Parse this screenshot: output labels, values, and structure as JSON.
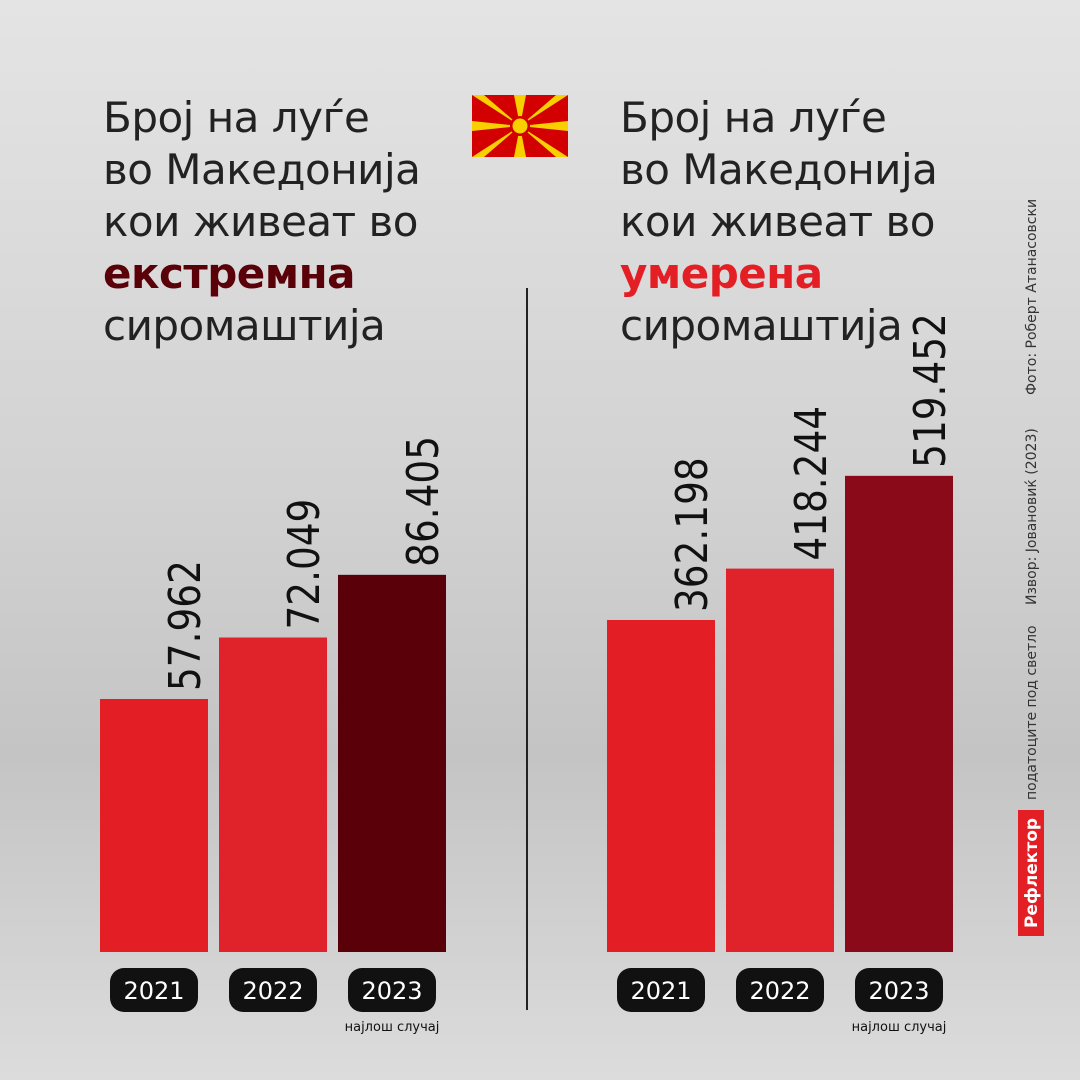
{
  "chart_data": [
    {
      "type": "bar",
      "title": {
        "before": "Број на луѓе во Македонија кои живеат во",
        "emphasis": "екстремна",
        "after": "сиромаштија"
      },
      "emphasis_color": "#5a0008",
      "categories": [
        "2021",
        "2022",
        "2023"
      ],
      "values": [
        57962,
        72049,
        86405
      ],
      "value_labels": [
        "57.962",
        "72.049",
        "86.405"
      ],
      "colors": [
        "#e31e24",
        "#e0222a",
        "#5a0008"
      ],
      "ylim": [
        0,
        126000
      ],
      "annotation": "најлош случај"
    },
    {
      "type": "bar",
      "title": {
        "before": "Број на луѓе во Македонија кои живеат во",
        "emphasis": "умерена",
        "after": "сиромаштија"
      },
      "emphasis_color": "#e31e24",
      "categories": [
        "2021",
        "2022",
        "2023"
      ],
      "values": [
        362198,
        418244,
        519452
      ],
      "value_labels": [
        "362.198",
        "418.244",
        "519.452"
      ],
      "colors": [
        "#e31e24",
        "#e0222a",
        "#8b0a1a"
      ],
      "ylim": [
        0,
        600000
      ],
      "annotation": "најлош случај"
    }
  ],
  "brand": "Рефлектор",
  "tagline": "податоците под светло",
  "source": "Извор: Јовановиќ (2023)",
  "photo_credit": "Фото: Роберт Атанасовски"
}
